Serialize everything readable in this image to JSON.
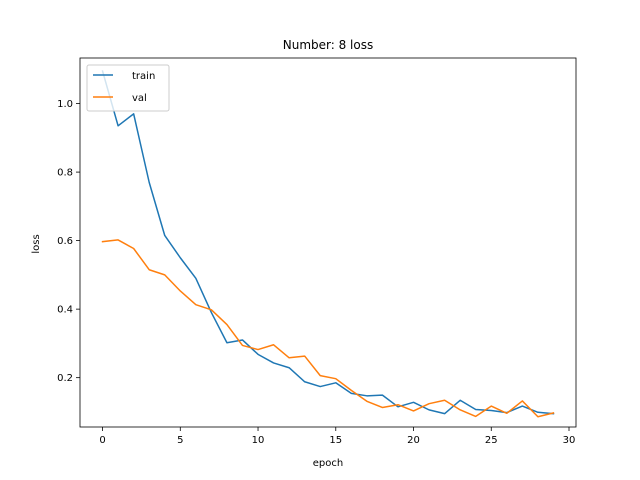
{
  "chart_data": {
    "type": "line",
    "title": "Number: 8 loss",
    "xlabel": "epoch",
    "ylabel": "loss",
    "xlim": [
      -1.45,
      30.45
    ],
    "ylim": [
      0.056,
      1.133
    ],
    "xticks": [
      0,
      5,
      10,
      15,
      20,
      25,
      30
    ],
    "yticks": [
      0.2,
      0.4,
      0.6,
      0.8,
      1.0
    ],
    "ytick_labels": [
      "0.2",
      "0.4",
      "0.6",
      "0.8",
      "1.0"
    ],
    "grid": false,
    "legend_position": "top-left",
    "x": [
      0,
      1,
      2,
      3,
      4,
      5,
      6,
      7,
      8,
      9,
      10,
      11,
      12,
      13,
      14,
      15,
      16,
      17,
      18,
      19,
      20,
      21,
      22,
      23,
      24,
      25,
      26,
      27,
      28,
      29
    ],
    "series": [
      {
        "name": "train",
        "color": "#1f77b4",
        "values": [
          1.095,
          0.935,
          0.97,
          0.77,
          0.615,
          0.55,
          0.49,
          0.39,
          0.302,
          0.31,
          0.268,
          0.243,
          0.229,
          0.188,
          0.174,
          0.185,
          0.154,
          0.147,
          0.149,
          0.115,
          0.128,
          0.106,
          0.095,
          0.134,
          0.107,
          0.104,
          0.098,
          0.117,
          0.099,
          0.095
        ]
      },
      {
        "name": "val",
        "color": "#ff7f0e",
        "values": [
          0.597,
          0.602,
          0.577,
          0.515,
          0.5,
          0.453,
          0.413,
          0.398,
          0.355,
          0.294,
          0.282,
          0.296,
          0.258,
          0.263,
          0.206,
          0.197,
          0.163,
          0.131,
          0.113,
          0.121,
          0.103,
          0.124,
          0.134,
          0.106,
          0.087,
          0.117,
          0.096,
          0.132,
          0.086,
          0.097
        ]
      }
    ]
  }
}
